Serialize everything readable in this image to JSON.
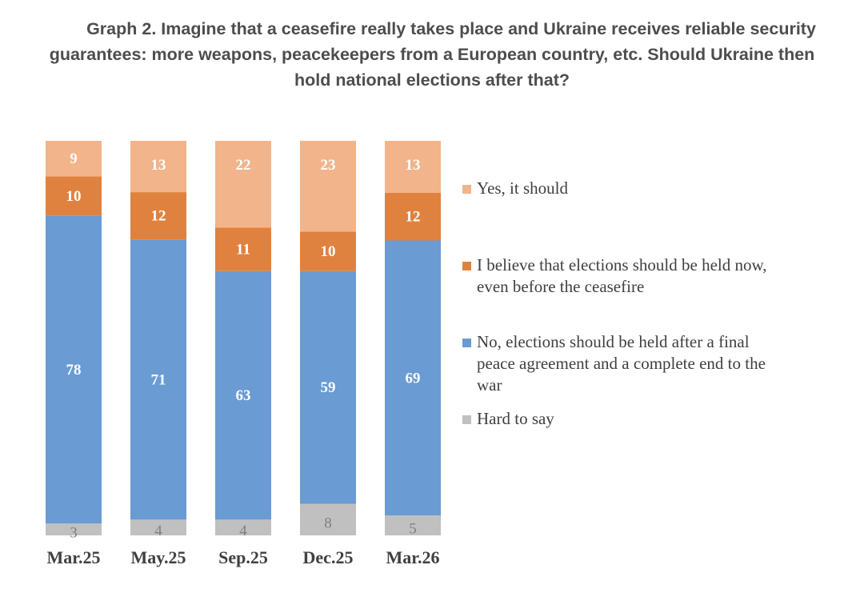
{
  "chart_data": {
    "type": "stacked-bar",
    "title_lines": [
      "Graph 2. Imagine that a ceasefire really takes place and Ukraine receives reliable security",
      "guarantees: more weapons, peacekeepers from a European country, etc. Should Ukraine then",
      "hold national elections after that?"
    ],
    "categories": [
      "Mar.25",
      "May.25",
      "Sep.25",
      "Dec.25",
      "Mar.26"
    ],
    "series": [
      {
        "name": "Hard to say",
        "color": "#c0c0c0",
        "label_color": "#7f7f7f",
        "values": [
          3,
          4,
          4,
          8,
          5
        ]
      },
      {
        "name": "No, elections should be held after a final peace agreement and a complete end to the war",
        "color": "#6a9bd2",
        "label_color": "#ffffff",
        "values": [
          78,
          71,
          63,
          59,
          69
        ]
      },
      {
        "name": "I believe that elections should be held now, even before the ceasefire",
        "color": "#e0823f",
        "label_color": "#ffffff",
        "values": [
          10,
          12,
          11,
          10,
          12
        ]
      },
      {
        "name": "Yes, it should",
        "color": "#f2b48a",
        "label_color": "#ffffff",
        "values": [
          9,
          13,
          22,
          23,
          13
        ]
      }
    ],
    "legend": [
      {
        "lines": [
          "Yes, it should"
        ],
        "color": "#f2b48a"
      },
      {
        "lines": [
          "I believe that elections should be held now,",
          "even before the ceasefire"
        ],
        "color": "#e0823f"
      },
      {
        "lines": [
          "No, elections should be held after a final",
          "peace agreement and a complete end to the",
          "war"
        ],
        "color": "#6a9bd2"
      },
      {
        "lines": [
          "Hard to say"
        ],
        "color": "#c0c0c0"
      }
    ],
    "ylim": [
      0,
      100
    ],
    "legend_position": "right"
  }
}
